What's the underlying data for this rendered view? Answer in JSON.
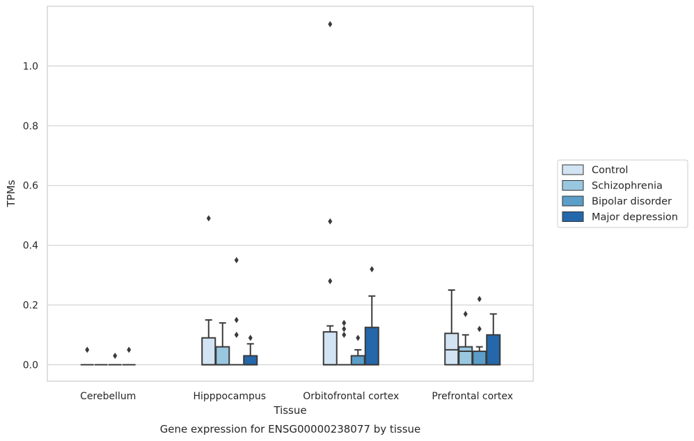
{
  "caption": "Gene expression for ENSG00000238077 by tissue",
  "chart_data": {
    "type": "box",
    "xlabel": "Tissue",
    "ylabel": "TPMs",
    "ylim": [
      -0.055,
      1.2
    ],
    "yticks": [
      0.0,
      0.2,
      0.4,
      0.6,
      0.8,
      1.0
    ],
    "ytick_labels": [
      "0.0",
      "0.2",
      "0.4",
      "0.6",
      "0.8",
      "1.0"
    ],
    "grid": "horizontal",
    "legend_position": "center-right outside",
    "categories": [
      "Cerebellum",
      "Hipppocampus",
      "Orbitofrontal cortex",
      "Prefrontal cortex"
    ],
    "series": [
      {
        "name": "Control",
        "color": "#d2e3f3",
        "boxes": [
          {
            "q1": 0,
            "median": 0,
            "q3": 0,
            "whisker_low": 0,
            "whisker_high": 0,
            "outliers": [
              0.05
            ]
          },
          {
            "q1": 0,
            "median": 0,
            "q3": 0.09,
            "whisker_low": 0,
            "whisker_high": 0.15,
            "outliers": [
              0.49
            ]
          },
          {
            "q1": 0,
            "median": 0,
            "q3": 0.11,
            "whisker_low": 0,
            "whisker_high": 0.13,
            "outliers": [
              0.28,
              0.48,
              1.14
            ]
          },
          {
            "q1": 0,
            "median": 0.05,
            "q3": 0.105,
            "whisker_low": 0,
            "whisker_high": 0.25,
            "outliers": []
          }
        ]
      },
      {
        "name": "Schizophrenia",
        "color": "#9ac7e0",
        "boxes": [
          {
            "q1": 0,
            "median": 0,
            "q3": 0,
            "whisker_low": 0,
            "whisker_high": 0,
            "outliers": []
          },
          {
            "q1": 0,
            "median": 0,
            "q3": 0.06,
            "whisker_low": 0,
            "whisker_high": 0.14,
            "outliers": []
          },
          {
            "q1": 0,
            "median": 0,
            "q3": 0,
            "whisker_low": 0,
            "whisker_high": 0,
            "outliers": [
              0.1,
              0.12,
              0.14
            ]
          },
          {
            "q1": 0,
            "median": 0.045,
            "q3": 0.06,
            "whisker_low": 0,
            "whisker_high": 0.1,
            "outliers": [
              0.17
            ]
          }
        ]
      },
      {
        "name": "Bipolar disorder",
        "color": "#5a9ec9",
        "boxes": [
          {
            "q1": 0,
            "median": 0,
            "q3": 0,
            "whisker_low": 0,
            "whisker_high": 0,
            "outliers": [
              0.03
            ]
          },
          {
            "q1": 0,
            "median": 0,
            "q3": 0,
            "whisker_low": 0,
            "whisker_high": 0,
            "outliers": [
              0.1,
              0.15,
              0.35
            ]
          },
          {
            "q1": 0,
            "median": 0,
            "q3": 0.03,
            "whisker_low": 0,
            "whisker_high": 0.05,
            "outliers": [
              0.09
            ]
          },
          {
            "q1": 0,
            "median": 0,
            "q3": 0.045,
            "whisker_low": 0,
            "whisker_high": 0.06,
            "outliers": [
              0.12,
              0.22
            ]
          }
        ]
      },
      {
        "name": "Major depression",
        "color": "#2467aa",
        "boxes": [
          {
            "q1": 0,
            "median": 0,
            "q3": 0,
            "whisker_low": 0,
            "whisker_high": 0,
            "outliers": [
              0.05
            ]
          },
          {
            "q1": 0,
            "median": 0,
            "q3": 0.03,
            "whisker_low": 0,
            "whisker_high": 0.07,
            "outliers": [
              0.09
            ]
          },
          {
            "q1": 0,
            "median": 0,
            "q3": 0.125,
            "whisker_low": 0,
            "whisker_high": 0.23,
            "outliers": [
              0.32
            ]
          },
          {
            "q1": 0,
            "median": 0,
            "q3": 0.1,
            "whisker_low": 0,
            "whisker_high": 0.17,
            "outliers": []
          }
        ]
      }
    ]
  }
}
